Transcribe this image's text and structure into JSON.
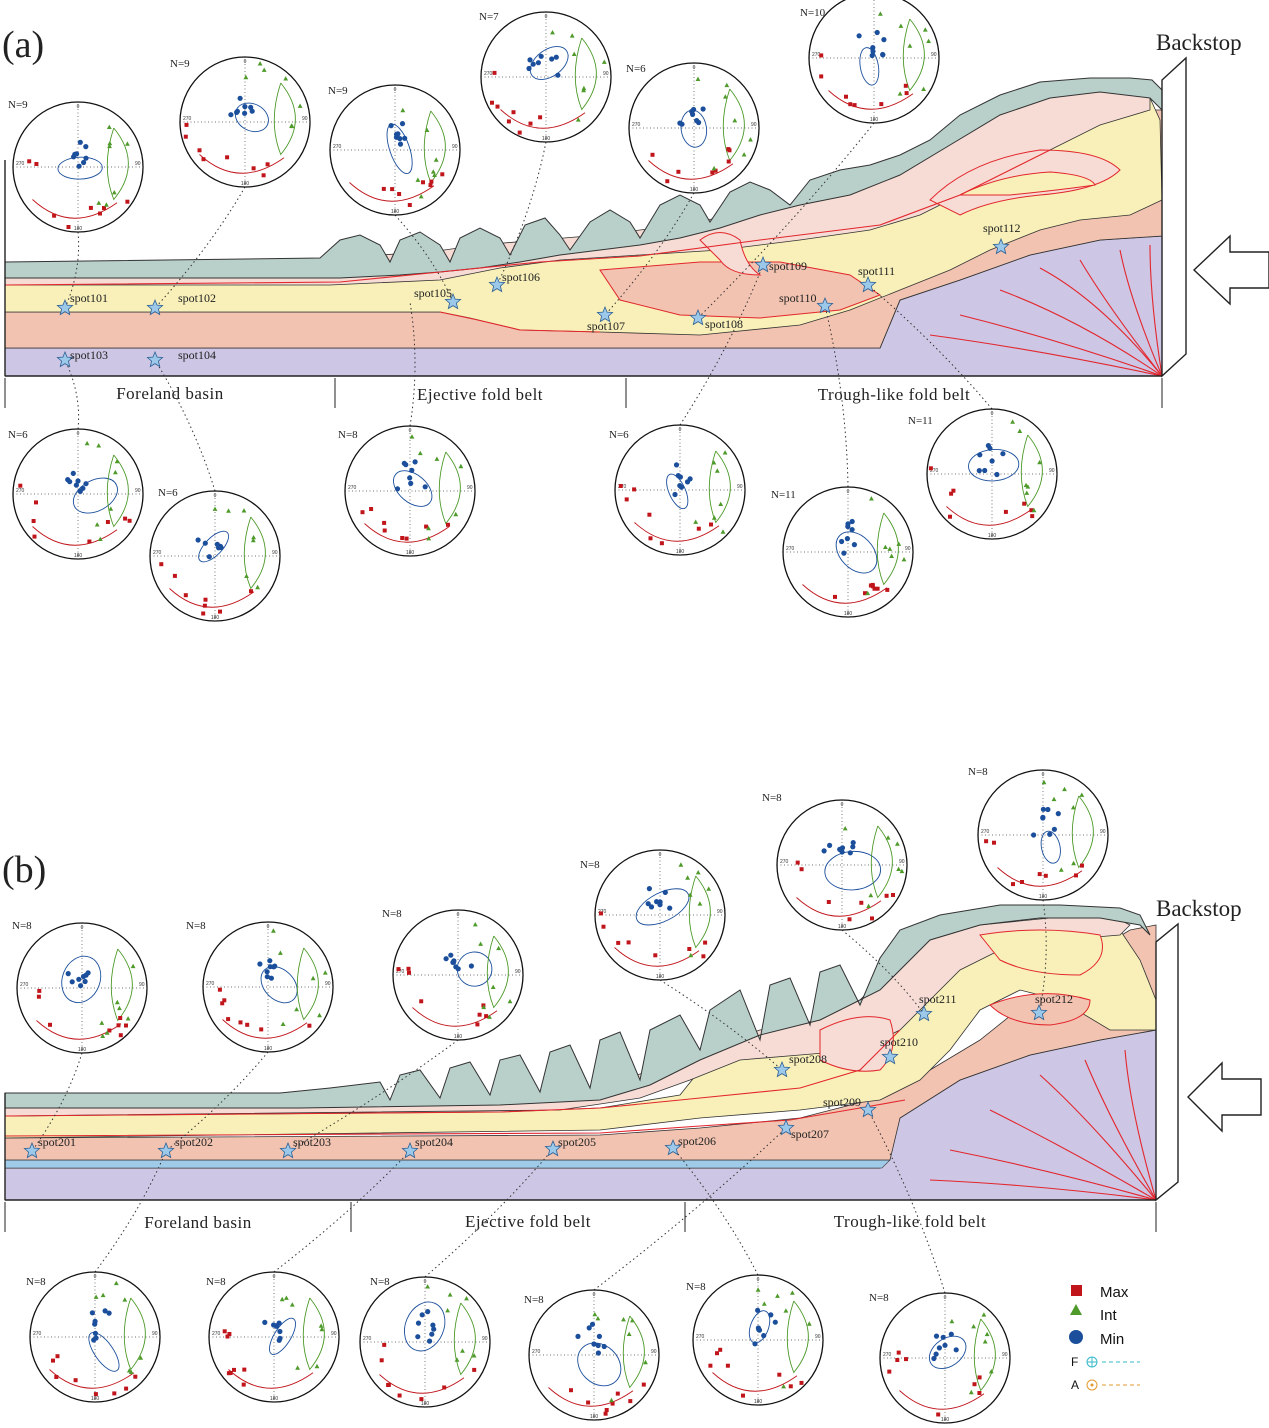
{
  "panels": [
    {
      "id": "a",
      "label": "(a)",
      "backstop_label": "Backstop",
      "zones": [
        "Foreland basin",
        "Ejective fold belt",
        "Trough-like fold belt"
      ],
      "spots": [
        "spot101",
        "spot102",
        "spot103",
        "spot104",
        "spot105",
        "spot106",
        "spot107",
        "spot108",
        "spot109",
        "spot110",
        "spot111",
        "spot112"
      ],
      "stereonet_counts": [
        "N=9",
        "N=9",
        "N=9",
        "N=7",
        "N=6",
        "N=10",
        "N=6",
        "N=6",
        "N=8",
        "N=6",
        "N=11",
        "N=11"
      ]
    },
    {
      "id": "b",
      "label": "(b)",
      "backstop_label": "Backstop",
      "zones": [
        "Foreland basin",
        "Ejective fold belt",
        "Trough-like fold belt"
      ],
      "spots": [
        "spot201",
        "spot202",
        "spot203",
        "spot204",
        "spot205",
        "spot206",
        "spot207",
        "spot208",
        "spot209",
        "spot210",
        "spot211",
        "spot212"
      ],
      "stereonet_counts": [
        "N=8",
        "N=8",
        "N=8",
        "N=8",
        "N=8",
        "N=8",
        "N=8",
        "N=8",
        "N=8",
        "N=8",
        "N=8",
        "N=8"
      ]
    }
  ],
  "stereonet_ticks": [
    "0",
    "90",
    "180",
    "270"
  ],
  "legend": {
    "items": [
      {
        "label": "Max",
        "symbol": "square",
        "color": "#c0151b"
      },
      {
        "label": "Int",
        "symbol": "triangle",
        "color": "#4e9a2a"
      },
      {
        "label": "Min",
        "symbol": "circle",
        "color": "#1b4f9c"
      }
    ],
    "lines": [
      {
        "label": "F",
        "symbol": "crosshair-circle",
        "color": "#35b8c9"
      },
      {
        "label": "A",
        "symbol": "dot-circle",
        "color": "#e39a2c"
      }
    ]
  },
  "colors": {
    "top_layer": "#b9cfca",
    "pink_light": "#f6dcd4",
    "yellow": "#f8f0b8",
    "salmon": "#f2c3b0",
    "basement": "#cdc6e4",
    "blue_strip": "#9fcbe9",
    "fault": "#e3262c",
    "max": "#c0151b",
    "int": "#4e9a2a",
    "min": "#1b4f9c"
  }
}
